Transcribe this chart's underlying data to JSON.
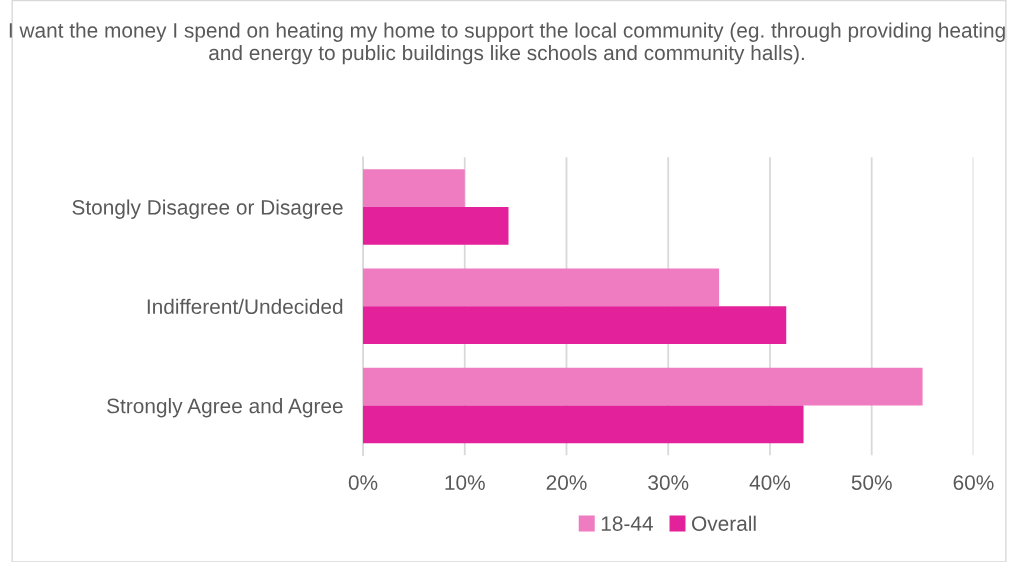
{
  "chart_data": {
    "type": "bar",
    "orientation": "horizontal",
    "title": "I want the money I spend on heating my home to support the local community (eg. through providing heating and energy to public buildings like schools and community halls).",
    "categories": [
      "Stongly Disagree or Disagree",
      "Indifferent/Undecided",
      "Strongly Agree and Agree"
    ],
    "series": [
      {
        "name": "18-44",
        "color": "#ef7bc0",
        "values": [
          10.0,
          35.0,
          55.0
        ]
      },
      {
        "name": "Overall",
        "color": "#e3219b",
        "values": [
          14.3,
          41.6,
          43.3
        ]
      }
    ],
    "xlim": [
      0,
      60
    ],
    "xticks": [
      {
        "value": 0,
        "label": "0%"
      },
      {
        "value": 10,
        "label": "10%"
      },
      {
        "value": 20,
        "label": "20%"
      },
      {
        "value": 30,
        "label": "30%"
      },
      {
        "value": 40,
        "label": "40%"
      },
      {
        "value": 50,
        "label": "50%"
      },
      {
        "value": 60,
        "label": "60%"
      }
    ],
    "grid": "x",
    "legend": "bottom"
  }
}
